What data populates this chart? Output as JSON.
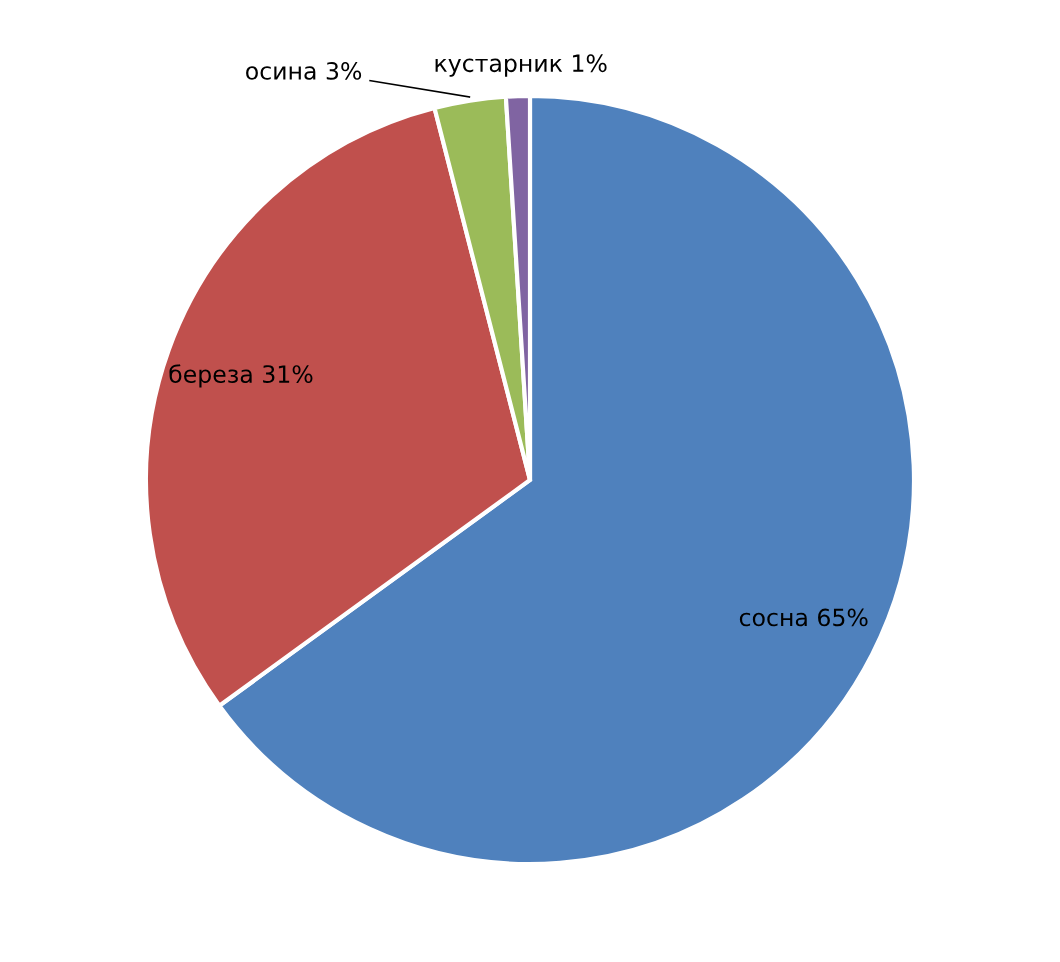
{
  "chart_data": {
    "type": "pie",
    "categories": [
      "сосна",
      "береза",
      "осина",
      "кустарник"
    ],
    "values": [
      65,
      31,
      3,
      1
    ],
    "value_labels": [
      "65%",
      "31%",
      "3%",
      "1%"
    ],
    "colors": [
      "#4f81bd",
      "#c0504d",
      "#9bbb59",
      "#8064a2"
    ],
    "legend": false
  }
}
